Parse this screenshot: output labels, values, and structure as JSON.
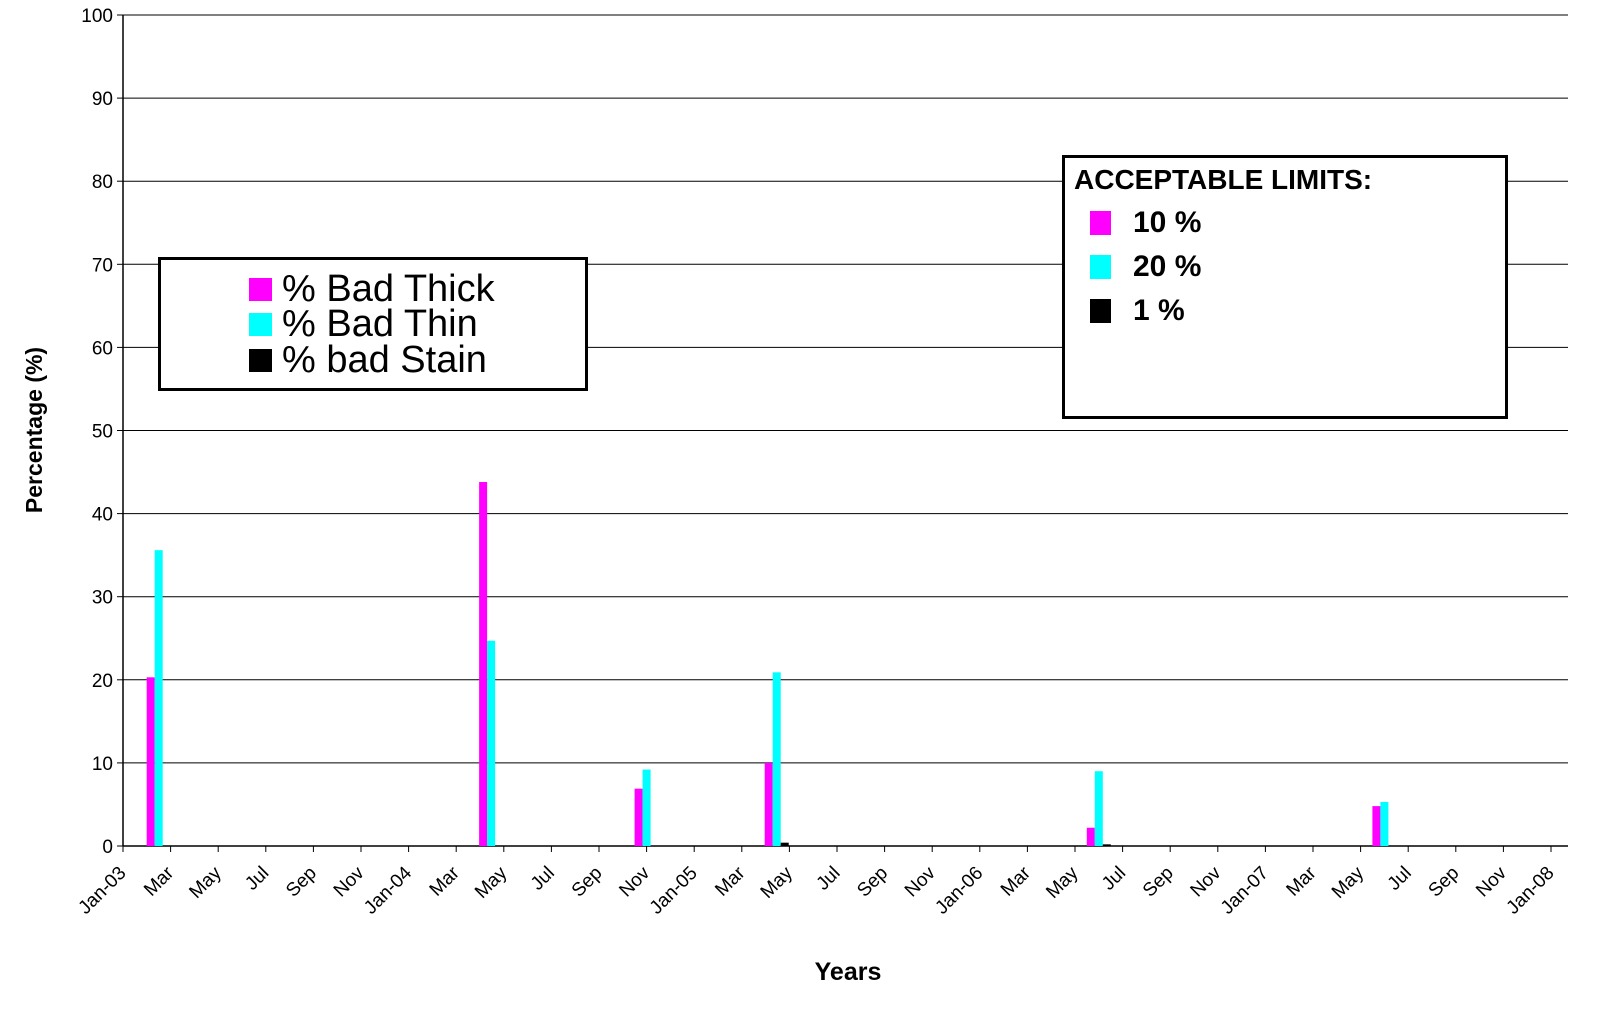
{
  "colors": {
    "thick": "#FF00FF",
    "thin": "#00FFFF",
    "stain": "#000000"
  },
  "legend": {
    "items": [
      {
        "label": "% Bad Thick",
        "color": "#FF00FF"
      },
      {
        "label": "% Bad Thin",
        "color": "#00FFFF"
      },
      {
        "label": "% bad Stain",
        "color": "#000000"
      }
    ]
  },
  "limits": {
    "title": "ACCEPTABLE LIMITS:",
    "items": [
      {
        "label": "10 %",
        "color": "#FF00FF"
      },
      {
        "label": "20 %",
        "color": "#00FFFF"
      },
      {
        "label": "1 %",
        "color": "#000000"
      }
    ]
  },
  "chart_data": {
    "type": "bar",
    "xlabel": "Years",
    "ylabel": "Percentage (%)",
    "ylim": [
      0,
      100
    ],
    "yticks": [
      0,
      10,
      20,
      30,
      40,
      50,
      60,
      70,
      80,
      90,
      100
    ],
    "grid": true,
    "legend_position": "upper-left",
    "x_tick_labels": [
      "Jan-03",
      "Mar",
      "May",
      "Jul",
      "Sep",
      "Nov",
      "Jan-04",
      "Mar",
      "May",
      "Jul",
      "Sep",
      "Nov",
      "Jan-05",
      "Mar",
      "May",
      "Jul",
      "Sep",
      "Nov",
      "Jan-06",
      "Mar",
      "May",
      "Jul",
      "Sep",
      "Nov",
      "Jan-07",
      "Mar",
      "May",
      "Jul",
      "Sep",
      "Nov",
      "Jan-08"
    ],
    "categories": [
      "2003-02-15",
      "2004-04-15",
      "2004-11-01",
      "2005-04-15",
      "2006-06-01",
      "2007-06-01"
    ],
    "series": [
      {
        "name": "% Bad Thick",
        "color": "#FF00FF",
        "values": [
          20.3,
          43.8,
          6.9,
          10.0,
          2.2,
          4.8
        ]
      },
      {
        "name": "% Bad Thin",
        "color": "#00FFFF",
        "values": [
          35.6,
          24.7,
          9.2,
          20.9,
          9.0,
          5.3
        ]
      },
      {
        "name": "% bad Stain",
        "color": "#000000",
        "values": [
          0,
          0,
          0,
          0.4,
          0.2,
          0
        ]
      }
    ]
  }
}
